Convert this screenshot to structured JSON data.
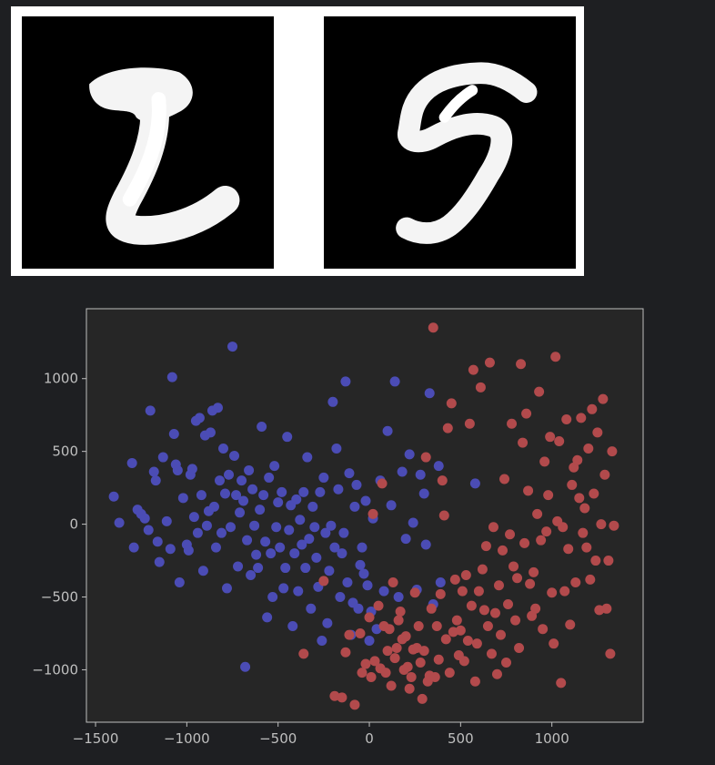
{
  "digits": [
    {
      "label": "2",
      "name": "digit-image-2"
    },
    {
      "label": "5",
      "name": "digit-image-5"
    }
  ],
  "chart_data": {
    "type": "scatter",
    "title": "",
    "xlabel": "",
    "ylabel": "",
    "xlim": [
      -1550,
      1500
    ],
    "ylim": [
      -1360,
      1480
    ],
    "x_ticks": [
      -1500,
      -1000,
      -500,
      0,
      500,
      1000
    ],
    "y_ticks": [
      -1000,
      -500,
      0,
      500,
      1000
    ],
    "grid": false,
    "colors": {
      "plot_bg": "#262626",
      "axis": "#bfbfbf",
      "blue": "#4b4cb5",
      "red": "#b24a4c"
    },
    "series": [
      {
        "color": "#4b4cb5",
        "points": [
          [
            -1400,
            190
          ],
          [
            -1370,
            10
          ],
          [
            -1300,
            420
          ],
          [
            -1290,
            -160
          ],
          [
            -1270,
            100
          ],
          [
            -1250,
            70
          ],
          [
            -1230,
            40
          ],
          [
            -1210,
            -40
          ],
          [
            -1200,
            780
          ],
          [
            -1180,
            360
          ],
          [
            -1170,
            300
          ],
          [
            -1160,
            -120
          ],
          [
            -1150,
            -260
          ],
          [
            -1130,
            460
          ],
          [
            -1110,
            20
          ],
          [
            -1090,
            -170
          ],
          [
            -1080,
            1010
          ],
          [
            -1070,
            620
          ],
          [
            -1060,
            410
          ],
          [
            -1050,
            370
          ],
          [
            -1040,
            -400
          ],
          [
            -1020,
            180
          ],
          [
            -1000,
            -140
          ],
          [
            -990,
            -180
          ],
          [
            -980,
            340
          ],
          [
            -970,
            380
          ],
          [
            -960,
            50
          ],
          [
            -950,
            710
          ],
          [
            -940,
            -60
          ],
          [
            -930,
            730
          ],
          [
            -920,
            200
          ],
          [
            -910,
            -320
          ],
          [
            -900,
            610
          ],
          [
            -890,
            -10
          ],
          [
            -880,
            90
          ],
          [
            -870,
            630
          ],
          [
            -860,
            780
          ],
          [
            -850,
            120
          ],
          [
            -840,
            -160
          ],
          [
            -830,
            800
          ],
          [
            -820,
            300
          ],
          [
            -810,
            -60
          ],
          [
            -800,
            520
          ],
          [
            -790,
            210
          ],
          [
            -780,
            -440
          ],
          [
            -770,
            340
          ],
          [
            -760,
            -20
          ],
          [
            -750,
            1220
          ],
          [
            -740,
            470
          ],
          [
            -730,
            200
          ],
          [
            -720,
            -290
          ],
          [
            -710,
            80
          ],
          [
            -700,
            300
          ],
          [
            -690,
            160
          ],
          [
            -680,
            -980
          ],
          [
            -670,
            -110
          ],
          [
            -660,
            370
          ],
          [
            -650,
            -350
          ],
          [
            -640,
            240
          ],
          [
            -630,
            -10
          ],
          [
            -620,
            -210
          ],
          [
            -610,
            -300
          ],
          [
            -600,
            100
          ],
          [
            -590,
            670
          ],
          [
            -580,
            200
          ],
          [
            -570,
            -120
          ],
          [
            -560,
            -640
          ],
          [
            -550,
            320
          ],
          [
            -540,
            -200
          ],
          [
            -530,
            -500
          ],
          [
            -520,
            400
          ],
          [
            -510,
            -20
          ],
          [
            -500,
            150
          ],
          [
            -490,
            -160
          ],
          [
            -480,
            220
          ],
          [
            -470,
            -440
          ],
          [
            -460,
            -300
          ],
          [
            -450,
            600
          ],
          [
            -440,
            -40
          ],
          [
            -430,
            130
          ],
          [
            -420,
            -700
          ],
          [
            -410,
            -200
          ],
          [
            -400,
            170
          ],
          [
            -390,
            -460
          ],
          [
            -380,
            30
          ],
          [
            -370,
            -140
          ],
          [
            -360,
            220
          ],
          [
            -350,
            -300
          ],
          [
            -340,
            460
          ],
          [
            -330,
            -100
          ],
          [
            -320,
            -580
          ],
          [
            -310,
            120
          ],
          [
            -300,
            -20
          ],
          [
            -290,
            -230
          ],
          [
            -280,
            -430
          ],
          [
            -270,
            220
          ],
          [
            -260,
            -800
          ],
          [
            -250,
            320
          ],
          [
            -240,
            -60
          ],
          [
            -230,
            -680
          ],
          [
            -220,
            -320
          ],
          [
            -210,
            -10
          ],
          [
            -200,
            840
          ],
          [
            -190,
            -160
          ],
          [
            -180,
            520
          ],
          [
            -170,
            240
          ],
          [
            -160,
            -500
          ],
          [
            -150,
            -200
          ],
          [
            -140,
            -60
          ],
          [
            -130,
            980
          ],
          [
            -120,
            -400
          ],
          [
            -110,
            350
          ],
          [
            -100,
            -760
          ],
          [
            -90,
            -540
          ],
          [
            -80,
            120
          ],
          [
            -70,
            270
          ],
          [
            -60,
            -580
          ],
          [
            -50,
            -280
          ],
          [
            -40,
            -160
          ],
          [
            -30,
            -340
          ],
          [
            -20,
            160
          ],
          [
            -10,
            -420
          ],
          [
            0,
            -800
          ],
          [
            10,
            -600
          ],
          [
            20,
            40
          ],
          [
            40,
            -720
          ],
          [
            60,
            300
          ],
          [
            80,
            -460
          ],
          [
            100,
            640
          ],
          [
            120,
            130
          ],
          [
            140,
            980
          ],
          [
            160,
            -500
          ],
          [
            180,
            360
          ],
          [
            200,
            -100
          ],
          [
            220,
            480
          ],
          [
            240,
            10
          ],
          [
            260,
            -450
          ],
          [
            280,
            340
          ],
          [
            300,
            210
          ],
          [
            310,
            -140
          ],
          [
            330,
            900
          ],
          [
            350,
            -550
          ],
          [
            380,
            400
          ],
          [
            390,
            -400
          ],
          [
            580,
            280
          ]
        ]
      },
      {
        "color": "#b24a4c",
        "points": [
          [
            -360,
            -890
          ],
          [
            -250,
            -390
          ],
          [
            -190,
            -1180
          ],
          [
            -150,
            -1190
          ],
          [
            -130,
            -880
          ],
          [
            -110,
            -760
          ],
          [
            -80,
            -1240
          ],
          [
            -50,
            -750
          ],
          [
            -40,
            -1020
          ],
          [
            -20,
            -960
          ],
          [
            0,
            -640
          ],
          [
            10,
            -1050
          ],
          [
            20,
            70
          ],
          [
            30,
            -940
          ],
          [
            50,
            -560
          ],
          [
            60,
            -990
          ],
          [
            70,
            280
          ],
          [
            80,
            -700
          ],
          [
            90,
            -1020
          ],
          [
            100,
            -870
          ],
          [
            110,
            -720
          ],
          [
            120,
            -1110
          ],
          [
            130,
            -400
          ],
          [
            140,
            -920
          ],
          [
            150,
            -850
          ],
          [
            160,
            -660
          ],
          [
            170,
            -600
          ],
          [
            180,
            -790
          ],
          [
            190,
            -1000
          ],
          [
            200,
            -770
          ],
          [
            210,
            -980
          ],
          [
            220,
            -1130
          ],
          [
            230,
            -1050
          ],
          [
            240,
            -860
          ],
          [
            250,
            -470
          ],
          [
            260,
            -850
          ],
          [
            270,
            -700
          ],
          [
            280,
            -950
          ],
          [
            290,
            -1200
          ],
          [
            300,
            -870
          ],
          [
            310,
            460
          ],
          [
            320,
            -1080
          ],
          [
            330,
            -1040
          ],
          [
            340,
            -580
          ],
          [
            350,
            1350
          ],
          [
            360,
            -1050
          ],
          [
            370,
            -700
          ],
          [
            380,
            -930
          ],
          [
            390,
            -480
          ],
          [
            400,
            300
          ],
          [
            410,
            60
          ],
          [
            420,
            -790
          ],
          [
            430,
            660
          ],
          [
            440,
            -1020
          ],
          [
            450,
            830
          ],
          [
            460,
            -740
          ],
          [
            470,
            -380
          ],
          [
            480,
            -660
          ],
          [
            490,
            -900
          ],
          [
            500,
            -730
          ],
          [
            510,
            -460
          ],
          [
            520,
            -940
          ],
          [
            530,
            -350
          ],
          [
            540,
            -800
          ],
          [
            550,
            690
          ],
          [
            560,
            -560
          ],
          [
            570,
            1060
          ],
          [
            580,
            -1080
          ],
          [
            590,
            -820
          ],
          [
            600,
            -460
          ],
          [
            610,
            940
          ],
          [
            620,
            -310
          ],
          [
            630,
            -590
          ],
          [
            640,
            -150
          ],
          [
            650,
            -700
          ],
          [
            660,
            1110
          ],
          [
            670,
            -890
          ],
          [
            680,
            -20
          ],
          [
            690,
            -610
          ],
          [
            700,
            -1030
          ],
          [
            710,
            -420
          ],
          [
            720,
            -760
          ],
          [
            730,
            -180
          ],
          [
            740,
            310
          ],
          [
            750,
            -950
          ],
          [
            760,
            -550
          ],
          [
            770,
            -70
          ],
          [
            780,
            690
          ],
          [
            790,
            -290
          ],
          [
            800,
            -660
          ],
          [
            810,
            -370
          ],
          [
            820,
            -850
          ],
          [
            830,
            1100
          ],
          [
            840,
            560
          ],
          [
            850,
            -130
          ],
          [
            860,
            760
          ],
          [
            870,
            230
          ],
          [
            880,
            -410
          ],
          [
            890,
            -630
          ],
          [
            900,
            -330
          ],
          [
            910,
            -580
          ],
          [
            920,
            70
          ],
          [
            930,
            910
          ],
          [
            940,
            -110
          ],
          [
            950,
            -720
          ],
          [
            960,
            430
          ],
          [
            970,
            -50
          ],
          [
            980,
            200
          ],
          [
            990,
            600
          ],
          [
            1000,
            -470
          ],
          [
            1010,
            -820
          ],
          [
            1020,
            1150
          ],
          [
            1030,
            20
          ],
          [
            1040,
            570
          ],
          [
            1050,
            -1090
          ],
          [
            1060,
            -20
          ],
          [
            1070,
            -460
          ],
          [
            1080,
            720
          ],
          [
            1090,
            -170
          ],
          [
            1100,
            -690
          ],
          [
            1110,
            270
          ],
          [
            1120,
            390
          ],
          [
            1130,
            -400
          ],
          [
            1140,
            440
          ],
          [
            1150,
            180
          ],
          [
            1160,
            730
          ],
          [
            1170,
            -60
          ],
          [
            1180,
            110
          ],
          [
            1190,
            -160
          ],
          [
            1200,
            520
          ],
          [
            1210,
            -380
          ],
          [
            1220,
            790
          ],
          [
            1230,
            210
          ],
          [
            1240,
            -250
          ],
          [
            1250,
            630
          ],
          [
            1260,
            -590
          ],
          [
            1270,
            0
          ],
          [
            1280,
            860
          ],
          [
            1290,
            340
          ],
          [
            1300,
            -580
          ],
          [
            1310,
            -250
          ],
          [
            1320,
            -890
          ],
          [
            1330,
            500
          ],
          [
            1340,
            -10
          ]
        ]
      }
    ]
  }
}
